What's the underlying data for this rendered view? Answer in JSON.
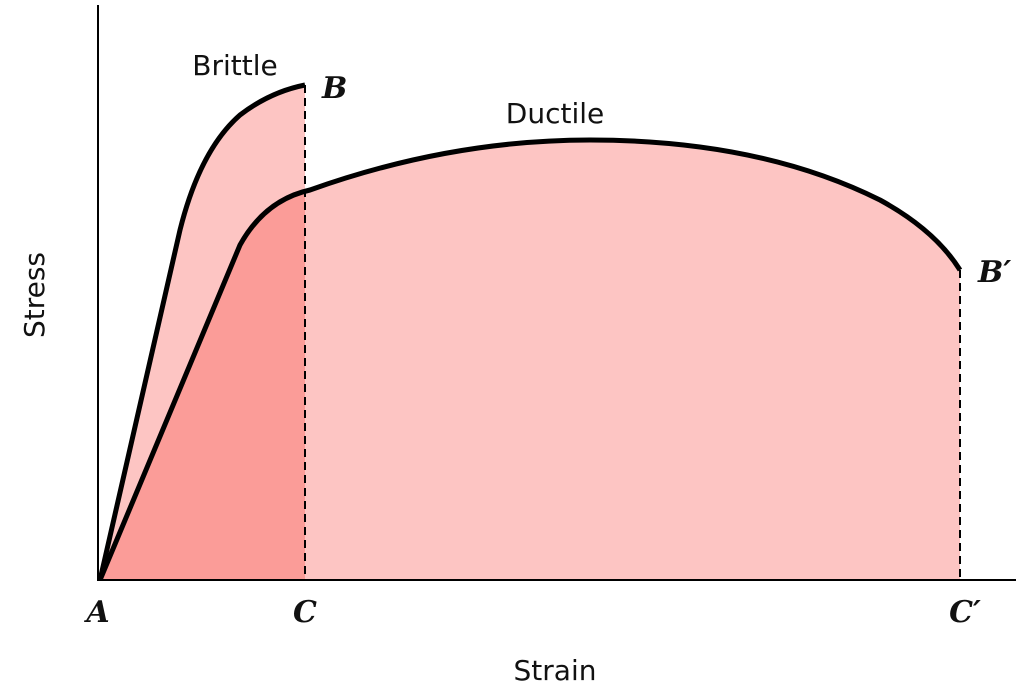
{
  "axes": {
    "y_label": "Stress",
    "x_label": "Strain"
  },
  "curves": [
    {
      "label": "Brittle",
      "end_label": "B"
    },
    {
      "label": "Ductile",
      "end_label": "B′"
    }
  ],
  "points": [
    "A",
    "C",
    "C′"
  ]
}
